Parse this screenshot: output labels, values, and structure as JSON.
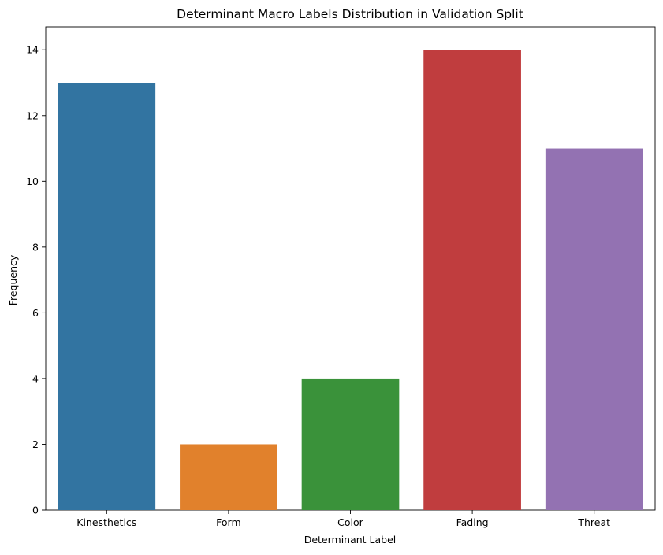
{
  "chart_data": {
    "type": "bar",
    "title": "Determinant Macro Labels Distribution in Validation Split",
    "xlabel": "Determinant Label",
    "ylabel": "Frequency",
    "categories": [
      "Kinesthetics",
      "Form",
      "Color",
      "Fading",
      "Threat"
    ],
    "values": [
      13,
      2,
      4,
      14,
      11
    ],
    "colors": [
      "#3274a1",
      "#e1812c",
      "#3a923a",
      "#c03d3e",
      "#9372b2"
    ],
    "ylim": [
      0,
      14.7
    ],
    "yticks": [
      0,
      2,
      4,
      6,
      8,
      10,
      12,
      14
    ],
    "grid": false,
    "legend": "none"
  }
}
